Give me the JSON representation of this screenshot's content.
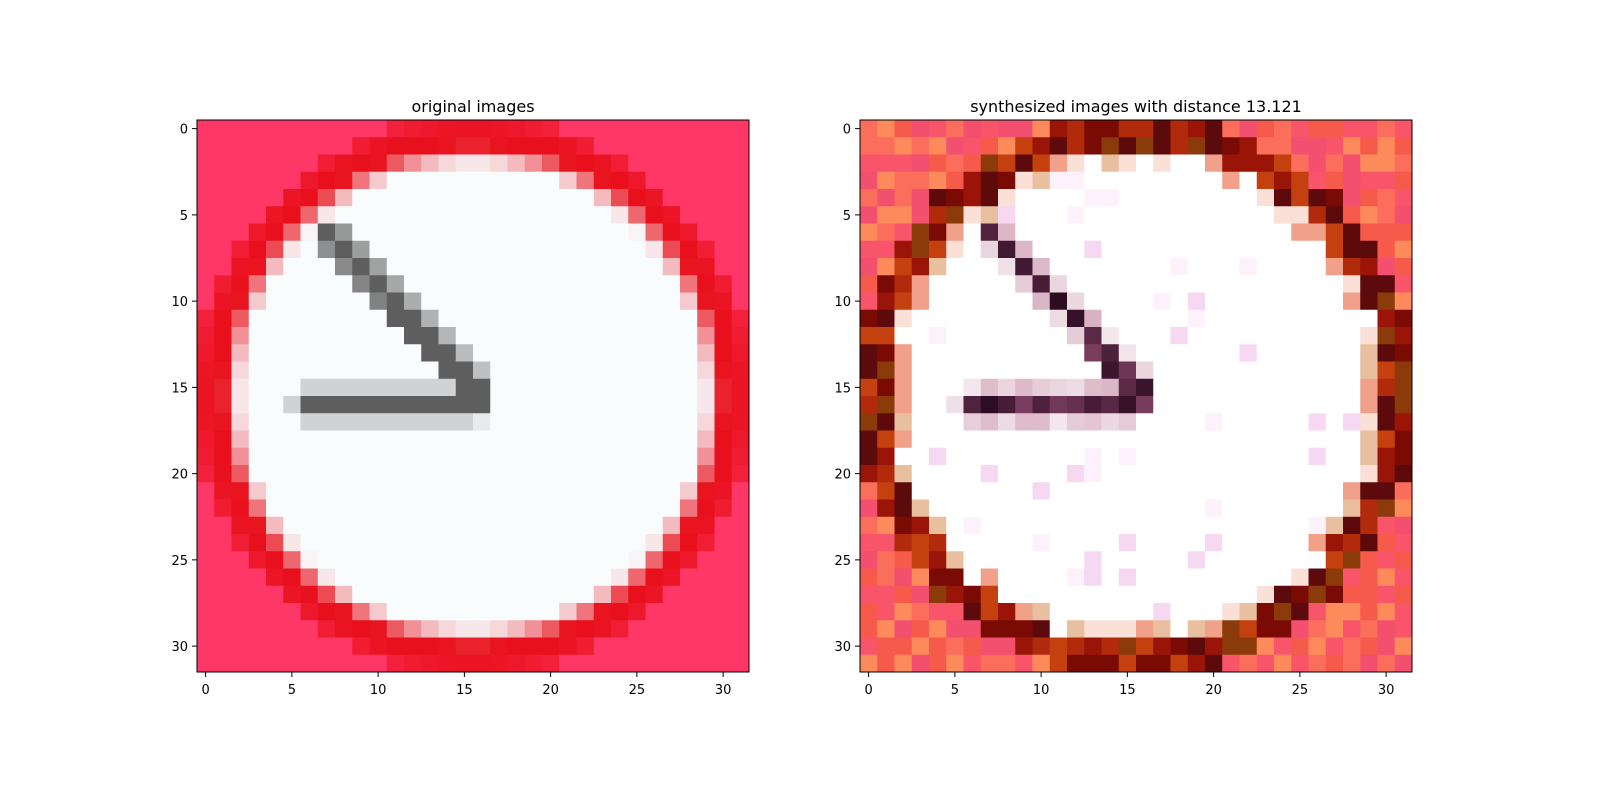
{
  "chart_data": [
    {
      "type": "heatmap",
      "title": "original images",
      "image_size": [
        32,
        32
      ],
      "x_ticks": [
        0,
        5,
        10,
        15,
        20,
        25,
        30
      ],
      "y_ticks": [
        0,
        5,
        10,
        15,
        20,
        25,
        30
      ],
      "xlim": [
        -0.5,
        31.5
      ],
      "ylim": [
        31.5,
        -0.5
      ],
      "grid": false,
      "content": "red-bordered white circular traffic sign with dark grey arrow pointing toward upper-left",
      "colors": {
        "background": "#ff3766",
        "ring": "#e8101c",
        "inner": "#f9fcfd",
        "arrow": "#5e5e5e"
      }
    },
    {
      "type": "heatmap",
      "title": "synthesized images with distance 13.121",
      "image_size": [
        32,
        32
      ],
      "x_ticks": [
        0,
        5,
        10,
        15,
        20,
        25,
        30
      ],
      "y_ticks": [
        0,
        5,
        10,
        15,
        20,
        25,
        30
      ],
      "xlim": [
        -0.5,
        31.5
      ],
      "ylim": [
        31.5,
        -0.5
      ],
      "grid": false,
      "content": "noisy reconstruction of the sign with dark red/brown ring and faint pink speckles",
      "colors": {
        "background": "#f8556a",
        "ring": "#9a1408",
        "inner": "#ffffff",
        "arrow": "#2a0a20"
      }
    }
  ]
}
